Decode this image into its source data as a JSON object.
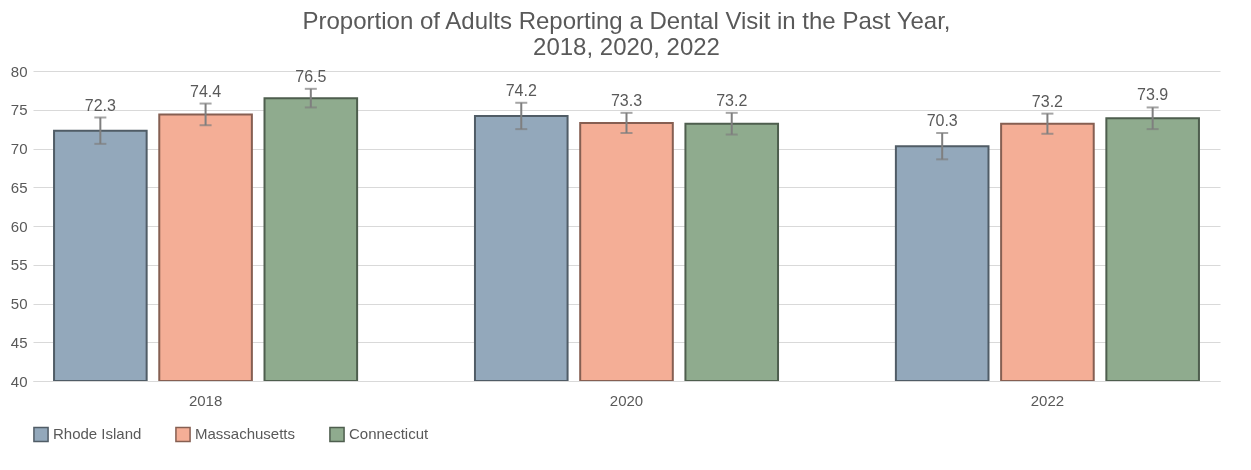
{
  "chart_data": {
    "type": "bar",
    "title": "Proportion of Adults Reporting a Dental Visit in the Past Year, 2018, 2020, 2022",
    "categories": [
      "2018",
      "2020",
      "2022"
    ],
    "series": [
      {
        "name": "Rhode Island",
        "color": "#93a8bb",
        "values": [
          72.3,
          74.2,
          70.3
        ],
        "errors": [
          1.7,
          1.7,
          1.7
        ]
      },
      {
        "name": "Massachusetts",
        "color": "#f4ae96",
        "values": [
          74.4,
          73.3,
          73.2
        ],
        "errors": [
          1.4,
          1.3,
          1.3
        ]
      },
      {
        "name": "Connecticut",
        "color": "#8fab8e",
        "values": [
          76.5,
          73.2,
          73.9
        ],
        "errors": [
          1.2,
          1.4,
          1.4
        ]
      }
    ],
    "ylim": [
      40,
      80
    ],
    "yticks": [
      40,
      45,
      50,
      55,
      60,
      65,
      70,
      75,
      80
    ],
    "grid": "y",
    "legend": "bottom",
    "data_labels": true
  }
}
